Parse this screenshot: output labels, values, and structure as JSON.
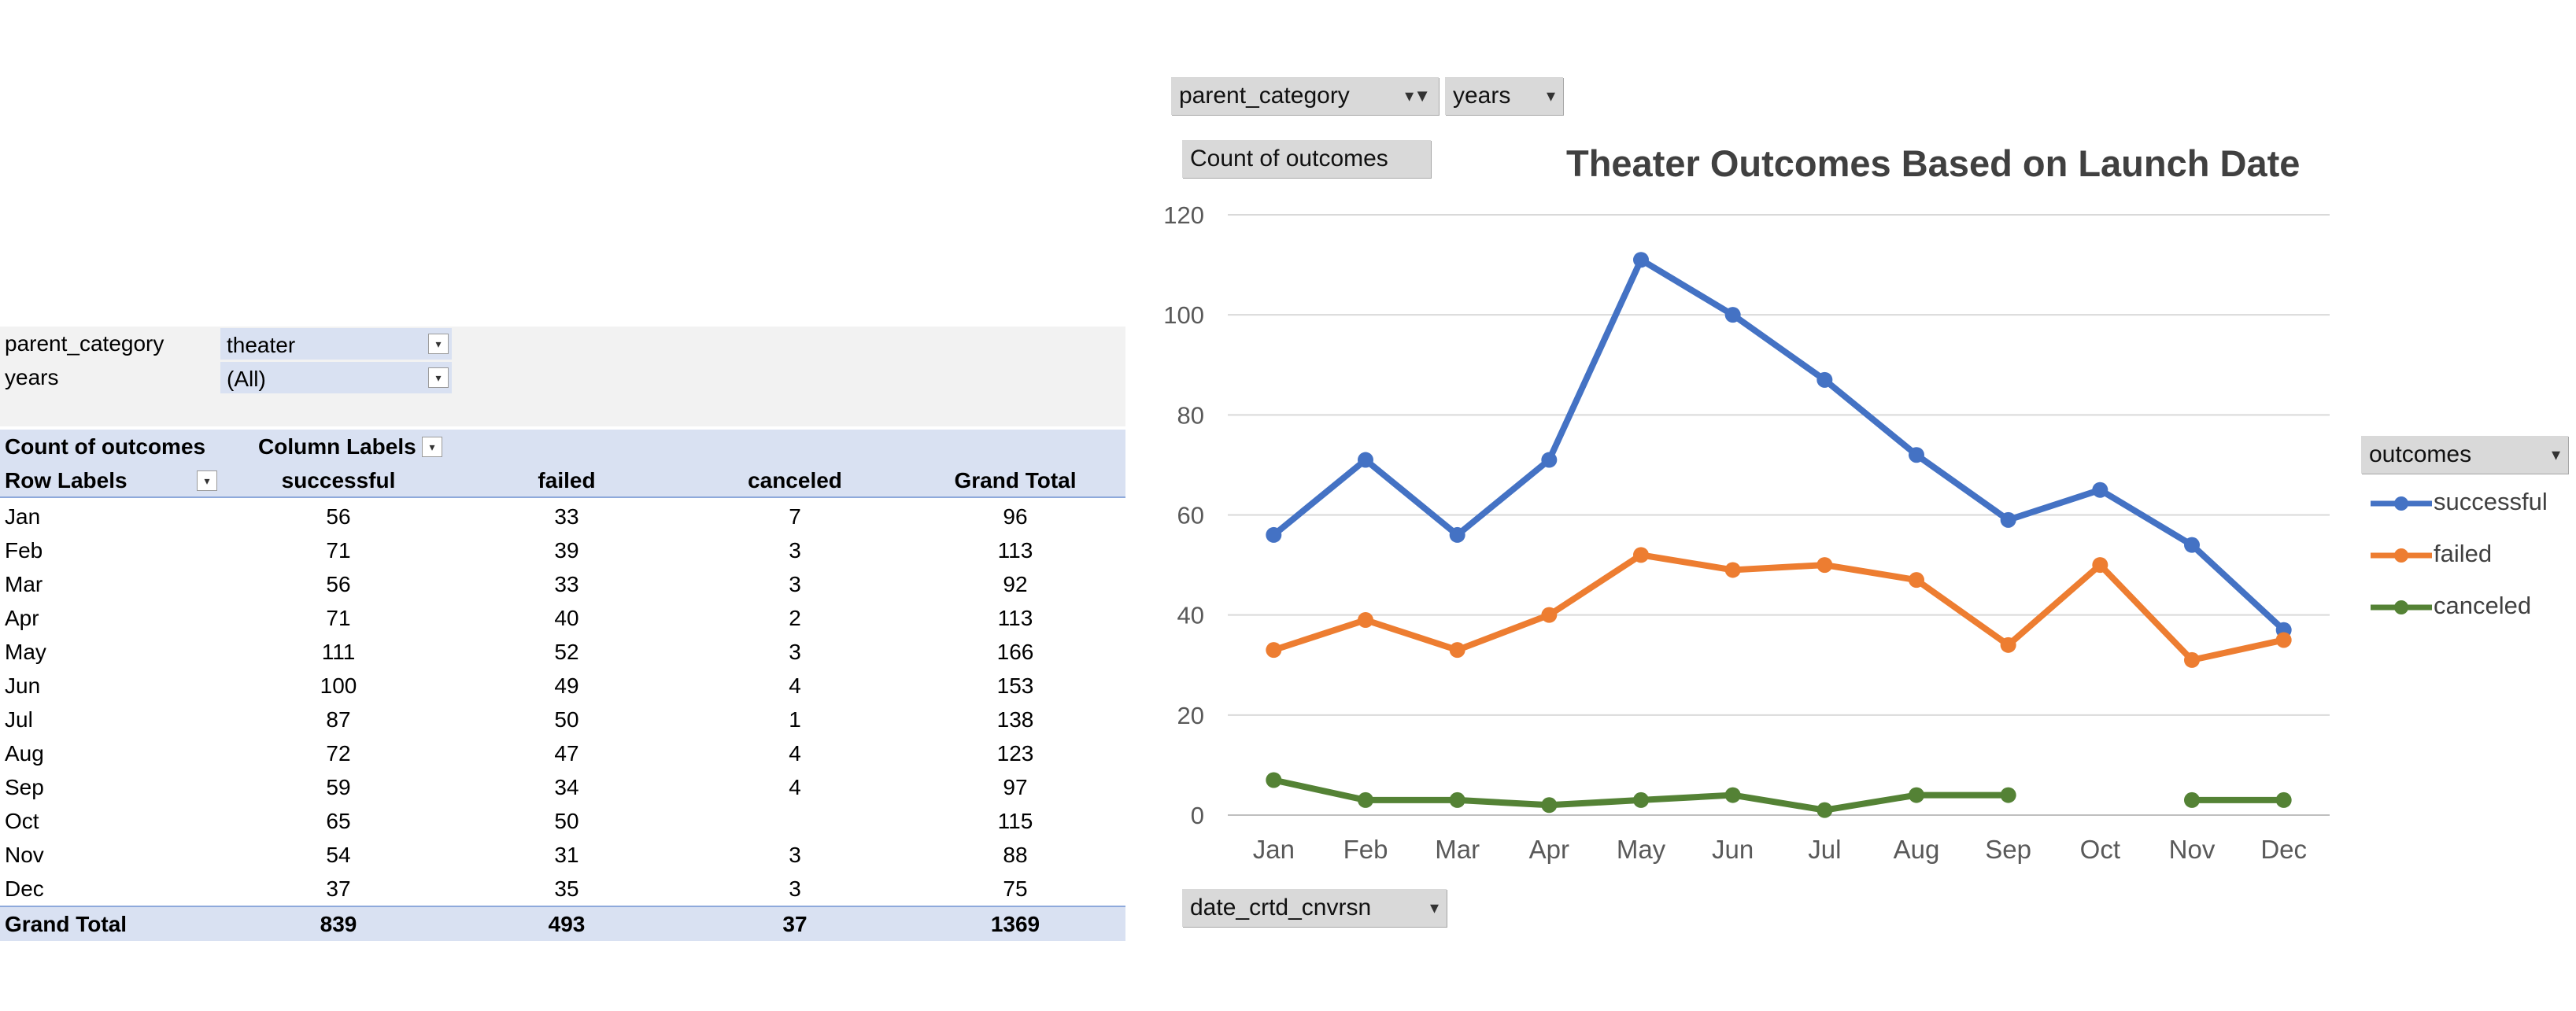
{
  "pivot_table": {
    "filters": [
      {
        "label": "parent_category",
        "value": "theater",
        "icon": "filter-icon"
      },
      {
        "label": "years",
        "value": "(All)",
        "icon": "dropdown-icon"
      }
    ],
    "header": {
      "value_field": "Count of outcomes",
      "column_labels": "Column Labels",
      "row_labels": "Row Labels",
      "columns": [
        "successful",
        "failed",
        "canceled",
        "Grand Total"
      ]
    },
    "rows": [
      {
        "label": "Jan",
        "values": [
          "56",
          "33",
          "7",
          "96"
        ]
      },
      {
        "label": "Feb",
        "values": [
          "71",
          "39",
          "3",
          "113"
        ]
      },
      {
        "label": "Mar",
        "values": [
          "56",
          "33",
          "3",
          "92"
        ]
      },
      {
        "label": "Apr",
        "values": [
          "71",
          "40",
          "2",
          "113"
        ]
      },
      {
        "label": "May",
        "values": [
          "111",
          "52",
          "3",
          "166"
        ]
      },
      {
        "label": "Jun",
        "values": [
          "100",
          "49",
          "4",
          "153"
        ]
      },
      {
        "label": "Jul",
        "values": [
          "87",
          "50",
          "1",
          "138"
        ]
      },
      {
        "label": "Aug",
        "values": [
          "72",
          "47",
          "4",
          "123"
        ]
      },
      {
        "label": "Sep",
        "values": [
          "59",
          "34",
          "4",
          "97"
        ]
      },
      {
        "label": "Oct",
        "values": [
          "65",
          "50",
          "",
          "115"
        ]
      },
      {
        "label": "Nov",
        "values": [
          "54",
          "31",
          "3",
          "88"
        ]
      },
      {
        "label": "Dec",
        "values": [
          "37",
          "35",
          "3",
          "75"
        ]
      }
    ],
    "grand_total": {
      "label": "Grand Total",
      "values": [
        "839",
        "493",
        "37",
        "1369"
      ]
    }
  },
  "chart_buttons": {
    "parent_category": "parent_category",
    "years": "years",
    "value_field": "Count of outcomes",
    "axis_field": "date_crtd_cnvrsn",
    "legend_field": "outcomes"
  },
  "chart_data": {
    "type": "line",
    "title": "Theater Outcomes Based on Launch Date",
    "categories": [
      "Jan",
      "Feb",
      "Mar",
      "Apr",
      "May",
      "Jun",
      "Jul",
      "Aug",
      "Sep",
      "Oct",
      "Nov",
      "Dec"
    ],
    "series": [
      {
        "name": "successful",
        "color": "#4472c4",
        "values": [
          56,
          71,
          56,
          71,
          111,
          100,
          87,
          72,
          59,
          65,
          54,
          37
        ]
      },
      {
        "name": "failed",
        "color": "#ed7d31",
        "values": [
          33,
          39,
          33,
          40,
          52,
          49,
          50,
          47,
          34,
          50,
          31,
          35
        ]
      },
      {
        "name": "canceled",
        "color": "#548235",
        "values": [
          7,
          3,
          3,
          2,
          3,
          4,
          1,
          4,
          4,
          null,
          3,
          3
        ]
      }
    ],
    "ylim": [
      0,
      120
    ],
    "yticks": [
      0,
      20,
      40,
      60,
      80,
      100,
      120
    ],
    "grid": true,
    "legend_position": "right"
  }
}
